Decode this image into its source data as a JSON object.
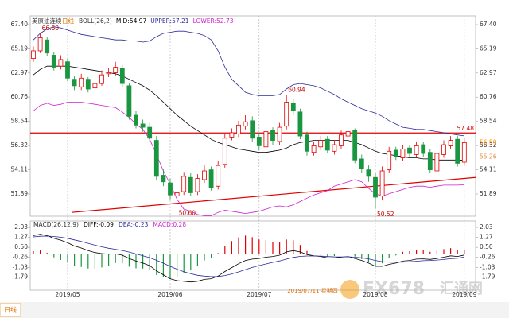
{
  "chart_data": [
    {
      "type": "candlestick",
      "title": "美原油连续",
      "period": "日线",
      "legend": [
        {
          "label": "BOLL(26,2)",
          "color": "#333333"
        },
        {
          "label": "MID:54.97",
          "color": "#000000"
        },
        {
          "label": "UPPER:57.21",
          "color": "#2c2c9c"
        },
        {
          "label": "LOWER:52.73",
          "color": "#d020d0"
        }
      ],
      "categories": [
        null,
        null,
        null,
        null,
        null,
        "2019/05",
        null,
        null,
        null,
        null,
        null,
        null,
        null,
        null,
        null,
        null,
        null,
        null,
        null,
        null,
        "2019/06",
        null,
        null,
        null,
        null,
        null,
        null,
        null,
        null,
        null,
        null,
        null,
        null,
        "2019/07",
        null,
        null,
        null,
        null,
        null,
        null,
        null,
        null,
        null,
        null,
        null,
        null,
        null,
        null,
        null,
        null,
        "2019/08",
        null,
        null,
        null,
        null,
        null,
        null,
        null,
        null,
        null,
        null,
        null,
        null,
        "2019/09"
      ],
      "open": [
        64.3,
        65.0,
        66.0,
        64.6,
        63.6,
        64.0,
        62.4,
        61.7,
        62.4,
        61.6,
        62.0,
        62.9,
        63.0,
        63.4,
        61.8,
        59.1,
        58.3,
        58.0,
        56.8,
        53.6,
        52.9,
        51.7,
        52.1,
        53.4,
        52.1,
        53.2,
        54.1,
        52.6,
        54.6,
        57.1,
        57.4,
        58.1,
        58.6,
        57.1,
        56.2,
        57.7,
        56.7,
        58.1,
        60.2,
        59.4,
        57.3,
        55.7,
        56.2,
        56.9,
        55.8,
        56.3,
        57.2,
        57.7,
        55.1,
        54.1,
        53.4,
        51.7,
        54.1,
        55.9,
        55.2,
        56.1,
        55.5,
        56.4,
        55.7,
        54.0,
        55.5,
        56.3,
        56.9,
        54.8
      ],
      "high": [
        65.4,
        66.6,
        66.3,
        64.9,
        64.6,
        64.3,
        62.7,
        62.9,
        62.6,
        62.3,
        63.2,
        63.4,
        64.0,
        63.7,
        62.0,
        59.5,
        58.7,
        58.4,
        57.2,
        54.2,
        53.3,
        52.5,
        53.9,
        53.8,
        53.7,
        54.5,
        54.4,
        54.9,
        57.4,
        57.9,
        58.6,
        59.1,
        59.0,
        57.5,
        58.0,
        58.0,
        58.4,
        60.94,
        60.6,
        59.7,
        57.6,
        56.7,
        57.2,
        57.2,
        56.8,
        57.7,
        58.4,
        57.9,
        55.5,
        54.5,
        53.8,
        54.4,
        56.2,
        56.2,
        56.4,
        56.4,
        56.7,
        56.7,
        56.0,
        56.0,
        56.8,
        57.2,
        57.2,
        57.0
      ],
      "low": [
        64.0,
        64.8,
        64.5,
        63.2,
        63.3,
        62.2,
        61.4,
        61.4,
        61.2,
        61.3,
        61.8,
        62.6,
        62.7,
        61.7,
        58.7,
        57.9,
        57.6,
        56.7,
        53.2,
        52.6,
        51.4,
        50.6,
        51.8,
        51.7,
        51.8,
        52.9,
        52.2,
        52.3,
        54.3,
        56.8,
        57.1,
        57.8,
        56.7,
        55.9,
        56.0,
        56.4,
        56.4,
        57.8,
        59.1,
        56.9,
        55.4,
        55.4,
        55.9,
        55.6,
        55.5,
        56.0,
        56.9,
        54.7,
        53.8,
        53.0,
        50.52,
        51.3,
        53.8,
        55.0,
        54.9,
        55.3,
        55.2,
        55.3,
        53.8,
        53.7,
        55.2,
        56.0,
        54.4,
        54.5
      ],
      "close": [
        65.0,
        66.2,
        64.8,
        63.5,
        64.2,
        62.5,
        61.8,
        62.5,
        61.5,
        62.0,
        62.8,
        63.0,
        63.5,
        62.0,
        59.0,
        58.2,
        58.0,
        57.0,
        53.5,
        53.0,
        51.8,
        52.0,
        53.5,
        52.0,
        53.3,
        54.0,
        52.5,
        54.5,
        57.0,
        57.5,
        58.2,
        58.5,
        57.0,
        56.3,
        57.6,
        56.8,
        58.0,
        60.3,
        59.5,
        57.2,
        55.8,
        56.3,
        56.8,
        55.9,
        56.4,
        57.3,
        57.6,
        55.0,
        54.2,
        53.5,
        51.6,
        54.0,
        55.8,
        55.3,
        56.0,
        55.6,
        56.3,
        55.6,
        54.1,
        55.6,
        56.4,
        56.8,
        54.7,
        56.59
      ],
      "series": [
        {
          "color": "#2c2c9c",
          "values": [
            66.0,
            66.6,
            67.0,
            67.2,
            67.1,
            66.9,
            66.7,
            66.5,
            66.4,
            66.3,
            66.2,
            66.1,
            66.0,
            66.0,
            65.9,
            65.9,
            65.8,
            65.9,
            66.3,
            66.6,
            66.7,
            66.8,
            66.8,
            66.7,
            66.6,
            66.4,
            66.0,
            65.0,
            63.5,
            62.4,
            61.8,
            61.2,
            61.0,
            60.9,
            60.9,
            60.9,
            61.0,
            61.5,
            61.9,
            62.0,
            61.9,
            61.8,
            61.6,
            61.3,
            61.0,
            60.6,
            60.3,
            60.0,
            59.7,
            59.5,
            59.3,
            59.0,
            58.6,
            58.3,
            58.0,
            57.9,
            57.8,
            57.8,
            57.7,
            57.6,
            57.5,
            57.4,
            57.3,
            57.21
          ]
        },
        {
          "color": "#000000",
          "values": [
            62.8,
            63.3,
            63.6,
            63.6,
            63.6,
            63.6,
            63.5,
            63.4,
            63.3,
            63.2,
            63.1,
            63.0,
            62.9,
            62.7,
            62.4,
            62.1,
            61.8,
            61.4,
            60.9,
            60.3,
            59.7,
            59.1,
            58.6,
            58.1,
            57.7,
            57.3,
            56.9,
            56.6,
            56.4,
            56.2,
            56.0,
            55.9,
            55.8,
            55.7,
            55.7,
            55.8,
            55.9,
            56.1,
            56.4,
            56.6,
            56.7,
            56.8,
            56.8,
            56.8,
            56.8,
            56.8,
            56.8,
            56.6,
            56.4,
            56.1,
            55.8,
            55.6,
            55.5,
            55.4,
            55.3,
            55.2,
            55.2,
            55.1,
            55.1,
            55.0,
            55.0,
            55.0,
            55.0,
            54.97
          ]
        },
        {
          "color": "#d020d0",
          "values": [
            59.5,
            60.0,
            60.2,
            60.0,
            60.1,
            60.3,
            60.3,
            60.3,
            60.2,
            60.1,
            60.0,
            59.9,
            59.8,
            59.4,
            58.9,
            58.3,
            57.8,
            56.9,
            55.5,
            54.0,
            52.8,
            51.4,
            50.5,
            50.3,
            50.0,
            49.9,
            49.9,
            50.2,
            50.4,
            50.3,
            50.2,
            50.1,
            50.2,
            50.3,
            50.5,
            50.7,
            50.8,
            50.7,
            50.9,
            51.2,
            51.5,
            51.8,
            52.0,
            52.2,
            52.6,
            52.8,
            53.0,
            53.2,
            53.0,
            52.4,
            51.9,
            51.7,
            51.9,
            52.1,
            52.3,
            52.5,
            52.6,
            52.6,
            52.5,
            52.6,
            52.7,
            52.7,
            52.7,
            52.73
          ]
        }
      ],
      "hline": {
        "value": 57.48,
        "label": "57.48",
        "color": "#e00000"
      },
      "trendline": {
        "start": 50.2,
        "end": 53.4,
        "color": "#e00000"
      },
      "annotations": [
        {
          "value": 66.6,
          "label": "66.60"
        },
        {
          "value": 60.94,
          "label": "60.94"
        },
        {
          "value": 50.6,
          "label": "50.60"
        },
        {
          "value": 50.52,
          "label": "50.52"
        }
      ],
      "price_tags": [
        {
          "value": 56.59,
          "label": "56.59",
          "color": "#ff8c00"
        },
        {
          "value": 55.26,
          "label": "55.26",
          "color": "#e09040"
        }
      ],
      "up_color": "#e00000",
      "down_color": "#1a9641",
      "ylim": [
        49.85,
        68.2
      ],
      "yticks": [
        {
          "value": 67.4,
          "label": "67.40"
        },
        65.19,
        62.97,
        60.76,
        58.54,
        56.32,
        54.11,
        51.89
      ]
    },
    {
      "type": "macd",
      "legend": [
        {
          "label": "MACD(26,12,9)",
          "color": "#333333"
        },
        {
          "label": "DIFF:-0.09",
          "color": "#000000"
        },
        {
          "label": "DEA:-0.23",
          "color": "#2c2c9c"
        },
        {
          "label": "MACD:0.28",
          "color": "#d020d0"
        }
      ],
      "series": [
        {
          "color": "#000000",
          "values": [
            1.4,
            1.5,
            1.4,
            1.2,
            1.05,
            0.85,
            0.6,
            0.45,
            0.25,
            0.1,
            0.02,
            -0.02,
            0.0,
            -0.1,
            -0.35,
            -0.55,
            -0.7,
            -0.9,
            -1.3,
            -1.6,
            -1.9,
            -2.05,
            -2.1,
            -2.15,
            -2.1,
            -1.95,
            -1.9,
            -1.7,
            -1.35,
            -1.05,
            -0.75,
            -0.5,
            -0.4,
            -0.35,
            -0.25,
            -0.2,
            -0.1,
            0.15,
            0.25,
            0.15,
            -0.05,
            -0.15,
            -0.2,
            -0.3,
            -0.3,
            -0.25,
            -0.2,
            -0.35,
            -0.5,
            -0.7,
            -0.95,
            -0.95,
            -0.8,
            -0.7,
            -0.55,
            -0.5,
            -0.4,
            -0.38,
            -0.42,
            -0.35,
            -0.25,
            -0.15,
            -0.2,
            -0.09
          ]
        },
        {
          "color": "#2c2c9c",
          "values": [
            1.3,
            1.35,
            1.36,
            1.33,
            1.28,
            1.19,
            1.07,
            0.95,
            0.81,
            0.67,
            0.54,
            0.43,
            0.35,
            0.26,
            0.14,
            0.0,
            -0.14,
            -0.29,
            -0.49,
            -0.71,
            -0.95,
            -1.17,
            -1.36,
            -1.52,
            -1.64,
            -1.7,
            -1.74,
            -1.73,
            -1.66,
            -1.54,
            -1.38,
            -1.2,
            -1.04,
            -0.9,
            -0.77,
            -0.65,
            -0.54,
            -0.4,
            -0.27,
            -0.19,
            -0.16,
            -0.16,
            -0.17,
            -0.2,
            -0.22,
            -0.23,
            -0.22,
            -0.25,
            -0.3,
            -0.38,
            -0.5,
            -0.59,
            -0.63,
            -0.64,
            -0.63,
            -0.6,
            -0.56,
            -0.52,
            -0.5,
            -0.47,
            -0.43,
            -0.37,
            -0.34,
            -0.23
          ]
        }
      ],
      "histogram": [
        0.2,
        0.3,
        0.08,
        -0.26,
        -0.46,
        -0.68,
        -0.94,
        -1.0,
        -1.12,
        -1.14,
        -1.04,
        -0.9,
        -0.7,
        -0.72,
        -0.98,
        -1.1,
        -1.12,
        -1.22,
        -1.62,
        -1.78,
        -1.9,
        -1.76,
        -1.48,
        -1.26,
        -0.92,
        -0.5,
        -0.32,
        0.06,
        0.62,
        0.98,
        1.26,
        1.4,
        1.28,
        1.1,
        1.04,
        0.9,
        0.88,
        1.1,
        1.04,
        0.68,
        0.22,
        0.02,
        -0.06,
        -0.2,
        -0.16,
        -0.04,
        0.04,
        -0.2,
        -0.4,
        -0.64,
        -0.9,
        -0.72,
        -0.34,
        -0.12,
        0.16,
        0.2,
        0.32,
        0.28,
        0.16,
        0.24,
        0.36,
        0.44,
        0.28,
        0.28
      ],
      "up_color": "#e00000",
      "down_color": "#1a9641",
      "ylim": [
        -2.78,
        2.52
      ],
      "yticks": [
        2.03,
        1.27,
        {
          "value": 0.5,
          "label": "0.50"
        },
        -0.26,
        -1.03,
        -1.79
      ]
    }
  ],
  "footer": {
    "tab": "日线",
    "date": "2019/07/11 星期四",
    "watermark": "FX678",
    "watermark_cn": "汇通网"
  }
}
